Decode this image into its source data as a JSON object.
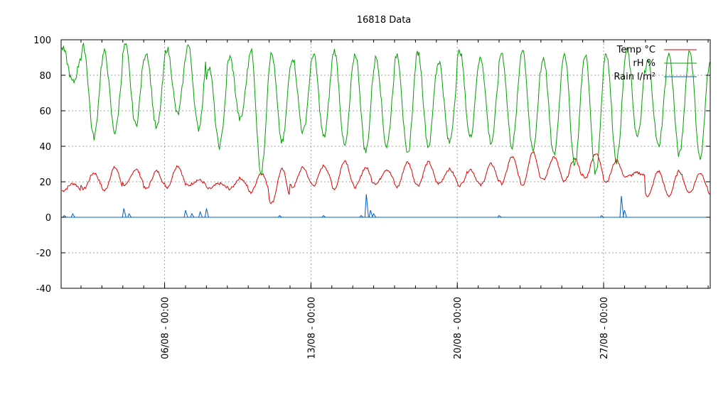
{
  "chart_data": {
    "type": "line",
    "title": "16818 Data",
    "xlabel": "",
    "ylabel": "",
    "ylim": [
      -40,
      100
    ],
    "yticks": [
      -40,
      -20,
      0,
      20,
      40,
      60,
      80,
      100
    ],
    "xlim": [
      "2023-08-30 09:00",
      "2023-09-03 00:00"
    ],
    "xticks": [
      {
        "value": "06/08 - 00:00",
        "day": 6
      },
      {
        "value": "13/08 - 00:00",
        "day": 13
      },
      {
        "value": "20/08 - 00:00",
        "day": 20
      },
      {
        "value": "27/08 - 00:00",
        "day": 27
      }
    ],
    "x_range_days": [
      1.05,
      32.1
    ],
    "grid": true,
    "legend_position": "top-right",
    "series": [
      {
        "name": "Temp °C",
        "color": "#e00000",
        "daily_min": [
          15,
          16,
          15,
          18,
          16,
          17,
          18,
          16,
          16,
          14,
          8,
          17,
          18,
          16,
          17,
          19,
          17,
          18,
          19,
          18,
          18,
          19,
          18,
          21,
          20,
          22,
          20,
          23,
          12,
          12,
          14,
          13,
          12
        ],
        "daily_max": [
          19,
          25,
          28,
          27,
          26,
          29,
          21,
          19,
          22,
          25,
          27,
          28,
          29,
          32,
          28,
          27,
          31,
          31,
          27,
          27,
          30,
          34,
          37,
          34,
          33,
          36,
          32,
          25,
          26,
          26,
          25,
          25,
          18
        ]
      },
      {
        "name": "rH %",
        "color": "#00a000",
        "daily_min": [
          76,
          45,
          48,
          52,
          50,
          58,
          50,
          40,
          55,
          25,
          42,
          48,
          45,
          40,
          37,
          40,
          35,
          40,
          42,
          45,
          42,
          40,
          37,
          35,
          30,
          25,
          32,
          45,
          40,
          35,
          33,
          38,
          50
        ],
        "daily_max": [
          95,
          96,
          93,
          97,
          93,
          95,
          97,
          85,
          90,
          95,
          92,
          90,
          92,
          94,
          92,
          90,
          92,
          93,
          88,
          94,
          90,
          93,
          95,
          90,
          93,
          92,
          93,
          94,
          88,
          92,
          94,
          90,
          90
        ]
      },
      {
        "name": "Rain l/m²",
        "color": "#0060c0",
        "rain_events": [
          [
            1.2,
            1
          ],
          [
            1.6,
            2
          ],
          [
            4.05,
            5
          ],
          [
            4.3,
            2
          ],
          [
            7.0,
            4
          ],
          [
            7.3,
            2
          ],
          [
            7.7,
            3
          ],
          [
            8.0,
            5
          ],
          [
            11.5,
            1
          ],
          [
            13.6,
            1
          ],
          [
            15.4,
            1
          ],
          [
            15.65,
            13
          ],
          [
            15.85,
            4
          ],
          [
            16.0,
            2
          ],
          [
            22.0,
            1
          ],
          [
            26.9,
            1
          ],
          [
            27.85,
            12
          ],
          [
            28.0,
            4
          ]
        ]
      }
    ]
  }
}
